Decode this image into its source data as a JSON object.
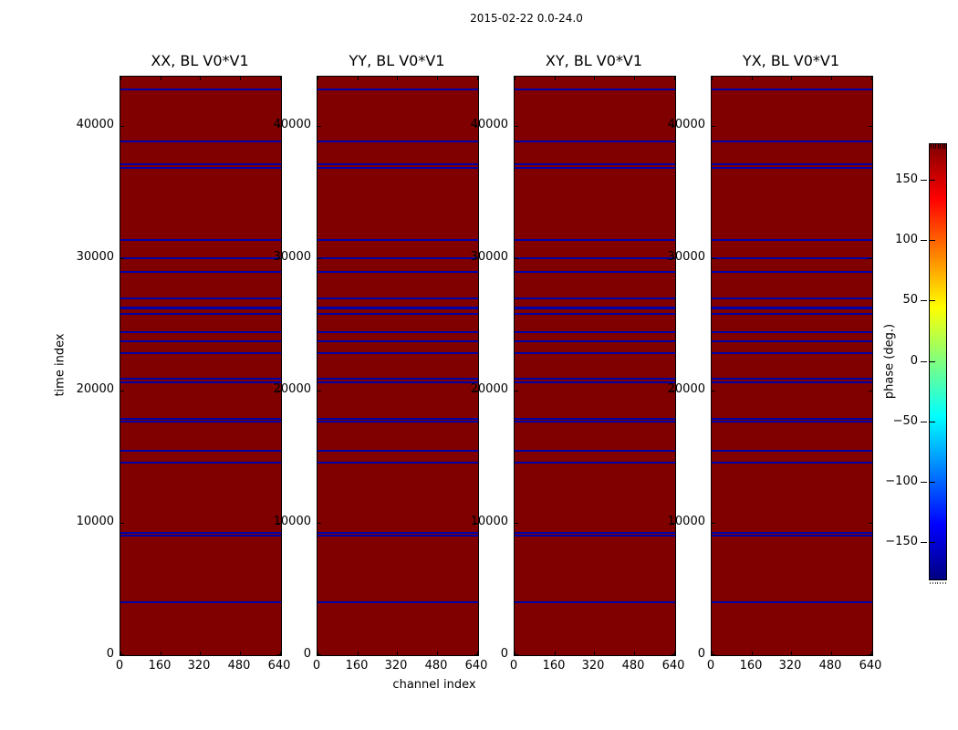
{
  "figure": {
    "title": "2015-02-22 0.0-24.0",
    "background_color": "#ffffff"
  },
  "chart_data": {
    "type": "heatmap",
    "title": "2015-02-22 0.0-24.0",
    "panels": [
      {
        "title": "XX, BL V0*V1"
      },
      {
        "title": "YY, BL V0*V1"
      },
      {
        "title": "XY, BL V0*V1"
      },
      {
        "title": "YX, BL V0*V1"
      }
    ],
    "xlabel": "channel index",
    "ylabel": "time index",
    "xlim": [
      0,
      644
    ],
    "ylim": [
      0,
      43700
    ],
    "xticks": [
      0,
      160,
      320,
      480,
      640
    ],
    "xtick_labels": [
      "0",
      "160",
      "320",
      "480",
      "640"
    ],
    "yticks": [
      0,
      10000,
      20000,
      30000,
      40000
    ],
    "ytick_labels": [
      "0",
      "10000",
      "20000",
      "30000",
      "40000"
    ],
    "background_phase_deg": 178,
    "background_color": "#800000",
    "stripe_color": "#0000a6",
    "stripe_phase_deg": -170,
    "stripes": [
      {
        "time_index": 42800,
        "thickness_px": 2
      },
      {
        "time_index": 38900,
        "thickness_px": 2
      },
      {
        "time_index": 37150,
        "thickness_px": 2
      },
      {
        "time_index": 36880,
        "thickness_px": 2
      },
      {
        "time_index": 31430,
        "thickness_px": 2
      },
      {
        "time_index": 30060,
        "thickness_px": 2
      },
      {
        "time_index": 29020,
        "thickness_px": 2
      },
      {
        "time_index": 27020,
        "thickness_px": 2
      },
      {
        "time_index": 26330,
        "thickness_px": 3
      },
      {
        "time_index": 25850,
        "thickness_px": 2
      },
      {
        "time_index": 24470,
        "thickness_px": 2
      },
      {
        "time_index": 23780,
        "thickness_px": 2
      },
      {
        "time_index": 22890,
        "thickness_px": 2
      },
      {
        "time_index": 20960,
        "thickness_px": 2
      },
      {
        "time_index": 20690,
        "thickness_px": 2
      },
      {
        "time_index": 17920,
        "thickness_px": 2
      },
      {
        "time_index": 17710,
        "thickness_px": 2
      },
      {
        "time_index": 15510,
        "thickness_px": 2
      },
      {
        "time_index": 14610,
        "thickness_px": 2
      },
      {
        "time_index": 9310,
        "thickness_px": 2
      },
      {
        "time_index": 9100,
        "thickness_px": 2
      },
      {
        "time_index": 4070,
        "thickness_px": 2
      }
    ],
    "colorbar": {
      "label": "phase (deg.)",
      "range": [
        -180,
        180
      ],
      "ticks": [
        150,
        100,
        50,
        0,
        -50,
        -100,
        -150
      ],
      "tick_labels": [
        "150",
        "100",
        "50",
        "0",
        "−50",
        "−100",
        "−150"
      ],
      "colormap": "jet",
      "gradient_stops": [
        {
          "pos": 0.0,
          "color": "#000080"
        },
        {
          "pos": 0.125,
          "color": "#0000ff"
        },
        {
          "pos": 0.375,
          "color": "#00ffff"
        },
        {
          "pos": 0.625,
          "color": "#ffff00"
        },
        {
          "pos": 0.875,
          "color": "#ff0000"
        },
        {
          "pos": 1.0,
          "color": "#800000"
        }
      ]
    }
  }
}
